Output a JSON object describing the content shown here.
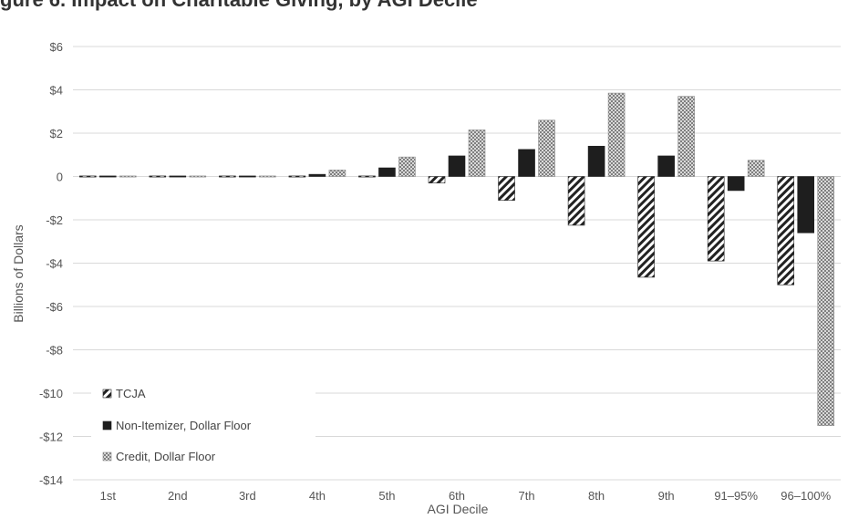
{
  "title_fragment": "gure 6. Impact on Charitable Giving, by AGI Decile",
  "chart_data": {
    "type": "bar",
    "title": "",
    "xlabel": "AGI Decile",
    "ylabel": "Billions of Dollars",
    "ylim": [
      -14,
      6
    ],
    "yticks": [
      6,
      4,
      2,
      0,
      -2,
      -4,
      -6,
      -8,
      -10,
      -12,
      -14
    ],
    "ytick_labels": [
      "$6",
      "$4",
      "$2",
      "0",
      "-$2",
      "-$4",
      "-$6",
      "-$8",
      "-$10",
      "-$12",
      "-$14"
    ],
    "grid": true,
    "legend_position": "bottom-left",
    "categories": [
      "1st",
      "2nd",
      "3rd",
      "4th",
      "5th",
      "6th",
      "7th",
      "8th",
      "9th",
      "91–95%",
      "96–100%"
    ],
    "series": [
      {
        "name": "TCJA",
        "pattern": "diagonal-stripes",
        "color": "#222222",
        "values": [
          0.0,
          0.0,
          0.0,
          0.0,
          -0.05,
          -0.3,
          -1.1,
          -2.25,
          -4.65,
          -3.9,
          -5.0
        ]
      },
      {
        "name": "Non-Itemizer, Dollar Floor",
        "pattern": "solid",
        "color": "#1e1e1e",
        "values": [
          0.0,
          0.0,
          0.0,
          0.1,
          0.4,
          0.95,
          1.25,
          1.4,
          0.95,
          -0.65,
          -2.6
        ]
      },
      {
        "name": "Credit, Dollar Floor",
        "pattern": "checkered",
        "color": "#a6a6a6",
        "values": [
          0.0,
          0.0,
          0.05,
          0.3,
          0.9,
          2.15,
          2.6,
          3.85,
          3.7,
          0.75,
          -11.5
        ]
      }
    ]
  }
}
